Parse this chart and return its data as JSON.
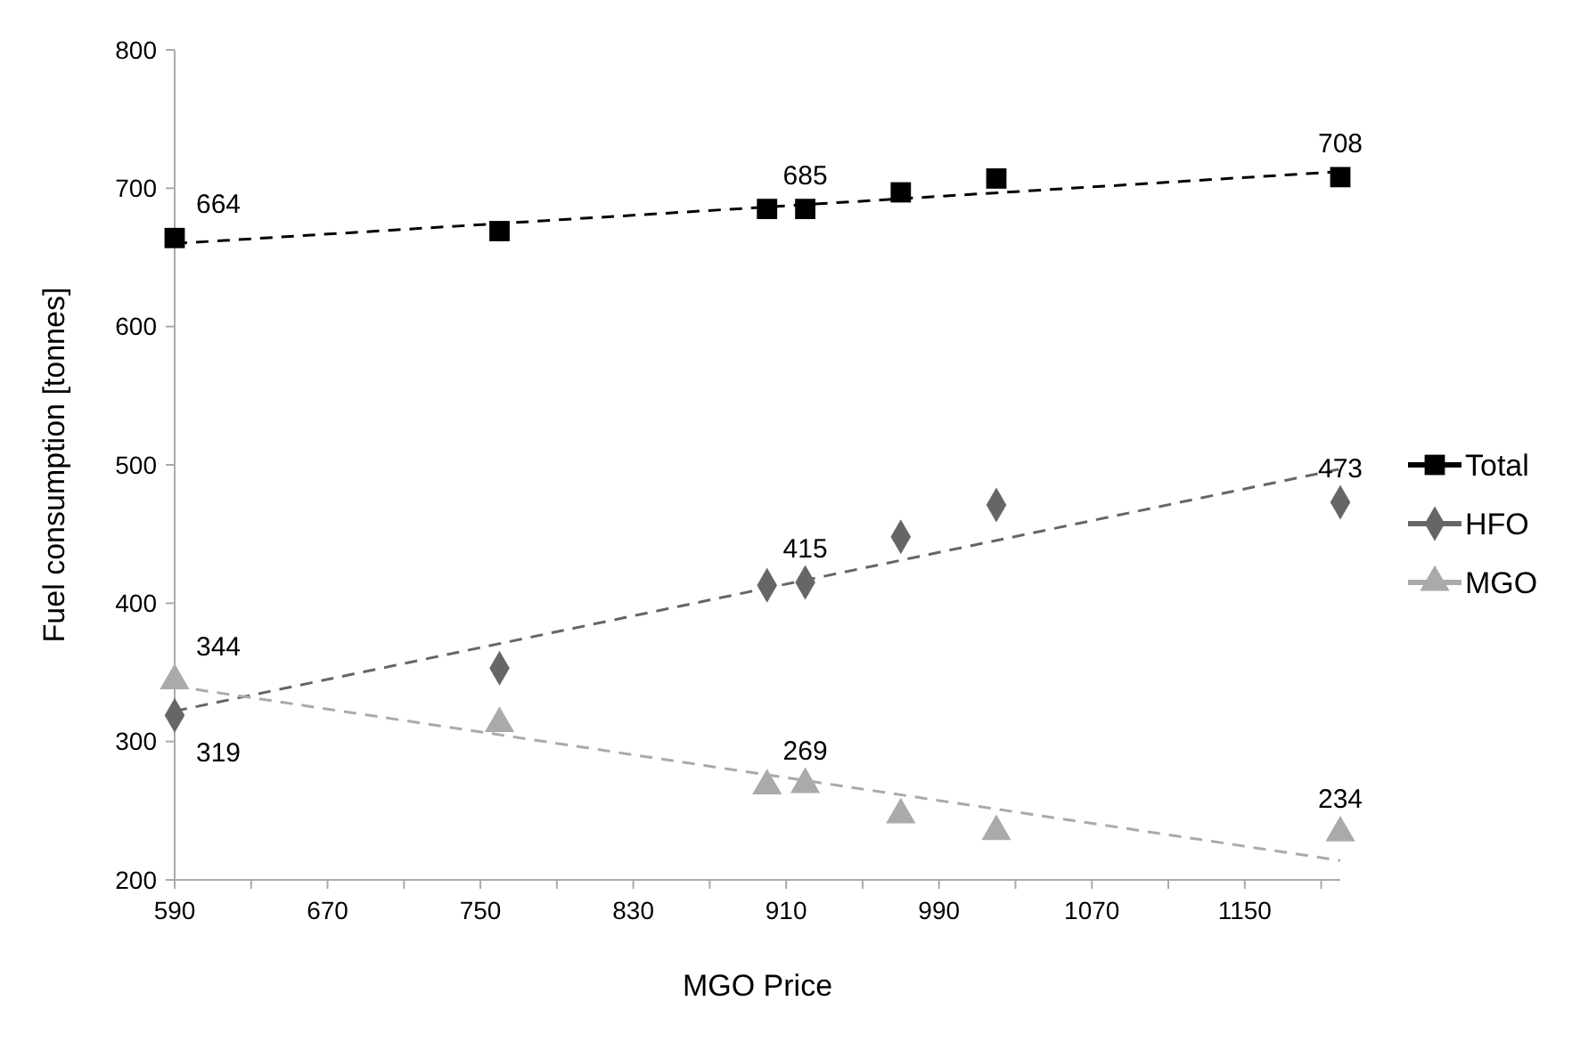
{
  "chart_data": {
    "type": "scatter",
    "xlabel": "MGO Price",
    "ylabel": "Fuel consumption [tonnes]",
    "x": [
      590,
      760,
      900,
      920,
      970,
      1020,
      1200
    ],
    "xlim": [
      590,
      1200
    ],
    "xticks": [
      590,
      {
        "value": 630,
        "label": null
      },
      670,
      {
        "value": 710,
        "label": null
      },
      750,
      {
        "value": 790,
        "label": null
      },
      830,
      {
        "value": 870,
        "label": null
      },
      910,
      {
        "value": 950,
        "label": null
      },
      990,
      {
        "value": 1030,
        "label": null
      },
      1070,
      {
        "value": 1110,
        "label": null
      },
      1150,
      {
        "value": 1190,
        "label": null
      }
    ],
    "ylim": [
      200,
      800
    ],
    "yticks": [
      200,
      300,
      400,
      500,
      600,
      700,
      800
    ],
    "grid": false,
    "legend": "right",
    "series": [
      {
        "name": "Total",
        "color": "#000000",
        "marker": "square",
        "values": [
          664,
          669,
          685,
          685,
          697,
          707,
          708
        ],
        "value_labels": [
          "664",
          null,
          null,
          "685",
          null,
          null,
          "708"
        ]
      },
      {
        "name": "HFO",
        "color": "#666666",
        "marker": "diamond",
        "values": [
          319,
          353,
          413,
          415,
          448,
          471,
          473
        ],
        "value_labels": [
          "319",
          null,
          null,
          "415",
          null,
          null,
          "473"
        ]
      },
      {
        "name": "MGO",
        "color": "#aaaaaa",
        "marker": "triangle",
        "values": [
          344,
          313,
          268,
          269,
          247,
          235,
          234
        ],
        "value_labels": [
          "344",
          null,
          null,
          "269",
          null,
          null,
          "234"
        ]
      },
      {
        "type": "line",
        "color": "#000000",
        "line_style": "dashed",
        "values": [
          660,
          null,
          null,
          null,
          null,
          null,
          712
        ]
      },
      {
        "type": "line",
        "color": "#666666",
        "line_style": "dashed",
        "values": [
          322,
          null,
          null,
          null,
          null,
          null,
          497
        ]
      },
      {
        "type": "line",
        "color": "#aaaaaa",
        "line_style": "dashed",
        "values": [
          340,
          null,
          null,
          null,
          null,
          null,
          214
        ]
      }
    ]
  }
}
